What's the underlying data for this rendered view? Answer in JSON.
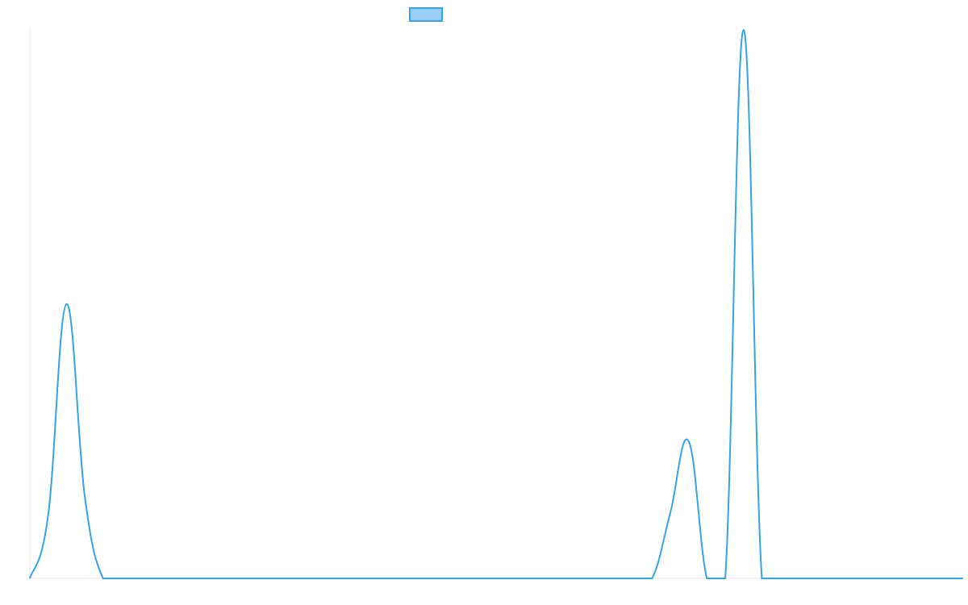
{
  "chart_data": {
    "type": "line",
    "title": "",
    "xlabel": "",
    "ylabel": "",
    "grid": false,
    "legend": "top-center",
    "x": [
      0,
      1,
      2,
      3,
      4,
      5,
      6,
      7,
      8,
      9,
      10,
      11,
      12,
      13,
      14,
      15,
      16,
      17,
      18,
      19,
      20,
      21,
      22,
      23,
      24,
      25,
      26,
      27,
      28,
      29,
      30,
      31,
      32,
      33,
      34,
      35,
      36,
      37,
      38,
      39,
      40,
      41,
      42,
      43,
      44,
      45,
      46,
      47,
      48,
      49,
      50,
      51
    ],
    "xlim": [
      0,
      51
    ],
    "ylim": [
      0,
      1
    ],
    "series": [
      {
        "name": "",
        "color": "#36A2EB",
        "fill": "#9AD0F5",
        "values": [
          0,
          0.115,
          0.5,
          0.15,
          0,
          0,
          0,
          0,
          0,
          0,
          0,
          0,
          0,
          0,
          0,
          0,
          0,
          0,
          0,
          0,
          0,
          0,
          0,
          0,
          0,
          0,
          0,
          0,
          0,
          0,
          0,
          0,
          0,
          0,
          0,
          0.12,
          0.25,
          0,
          0,
          1.0,
          0,
          0,
          0,
          0,
          0,
          0,
          0,
          0,
          0,
          0,
          0,
          0
        ]
      }
    ]
  }
}
